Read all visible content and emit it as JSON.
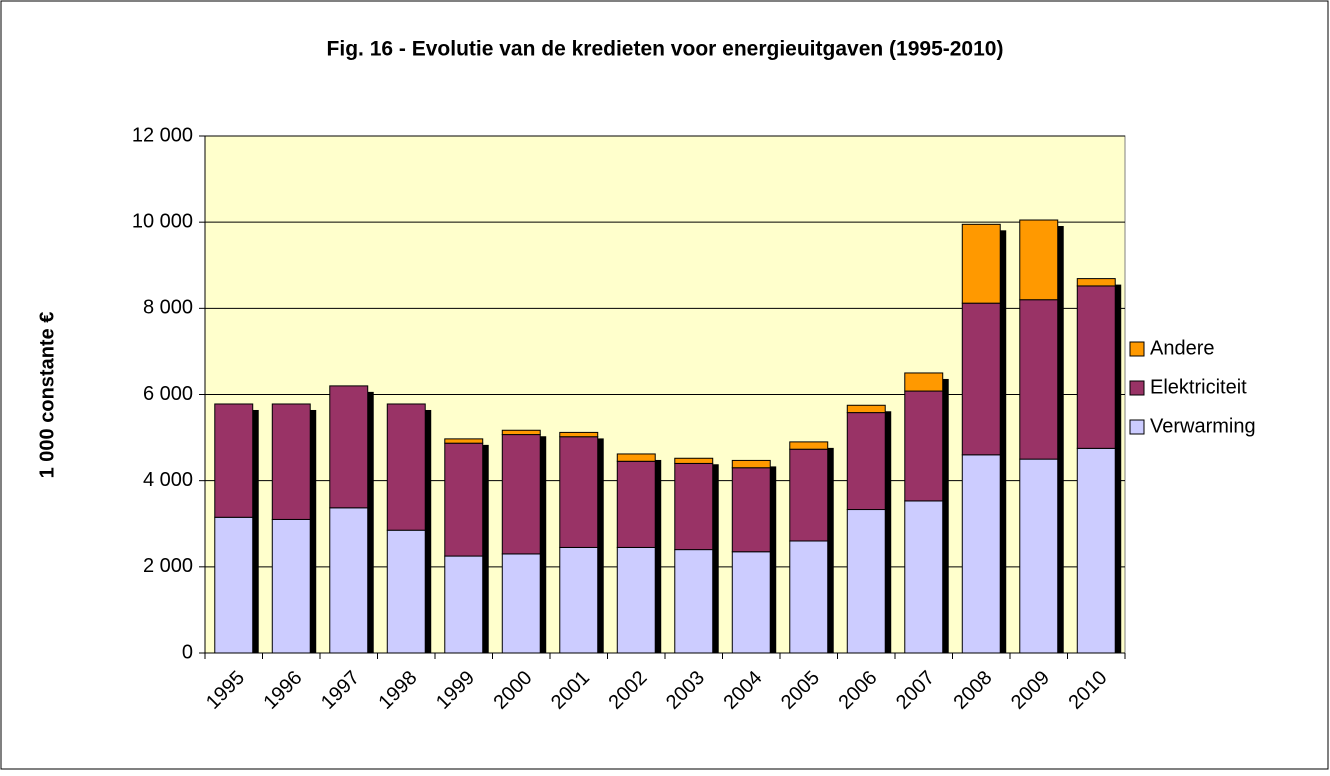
{
  "chart_data": {
    "type": "stacked_bar",
    "title": "Fig. 16 - Evolutie van de kredieten voor energieuitgaven (1995-2010)",
    "y_label": "1 000 constante €",
    "categories": [
      "1995",
      "1996",
      "1997",
      "1998",
      "1999",
      "2000",
      "2001",
      "2002",
      "2003",
      "2004",
      "2005",
      "2006",
      "2007",
      "2008",
      "2009",
      "2010"
    ],
    "series": [
      {
        "name": "Verwarming",
        "color": "#ccccff",
        "values": [
          3150,
          3100,
          3370,
          2850,
          2250,
          2300,
          2450,
          2450,
          2400,
          2350,
          2600,
          3330,
          3530,
          4600,
          4500,
          4750
        ]
      },
      {
        "name": "Elektriciteit",
        "color": "#993366",
        "values": [
          2630,
          2680,
          2830,
          2930,
          2620,
          2770,
          2570,
          2000,
          2000,
          1950,
          2130,
          2250,
          2550,
          3520,
          3700,
          3770
        ]
      },
      {
        "name": "Andere",
        "color": "#ff9900",
        "values": [
          0,
          0,
          0,
          0,
          100,
          100,
          100,
          170,
          120,
          170,
          170,
          170,
          420,
          1830,
          1850,
          170
        ]
      }
    ],
    "ylim": [
      0,
      12000
    ],
    "yticks": [
      0,
      {
        "value": 2000,
        "label": "2 000"
      },
      {
        "value": 4000,
        "label": "4 000"
      },
      {
        "value": 6000,
        "label": "6 000"
      },
      {
        "value": 8000,
        "label": "8 000"
      },
      {
        "value": 10000,
        "label": "10 000"
      },
      {
        "value": 12000,
        "label": "12 000"
      }
    ],
    "grid": true,
    "legend": "right",
    "plot_background": "#ffffcc"
  }
}
